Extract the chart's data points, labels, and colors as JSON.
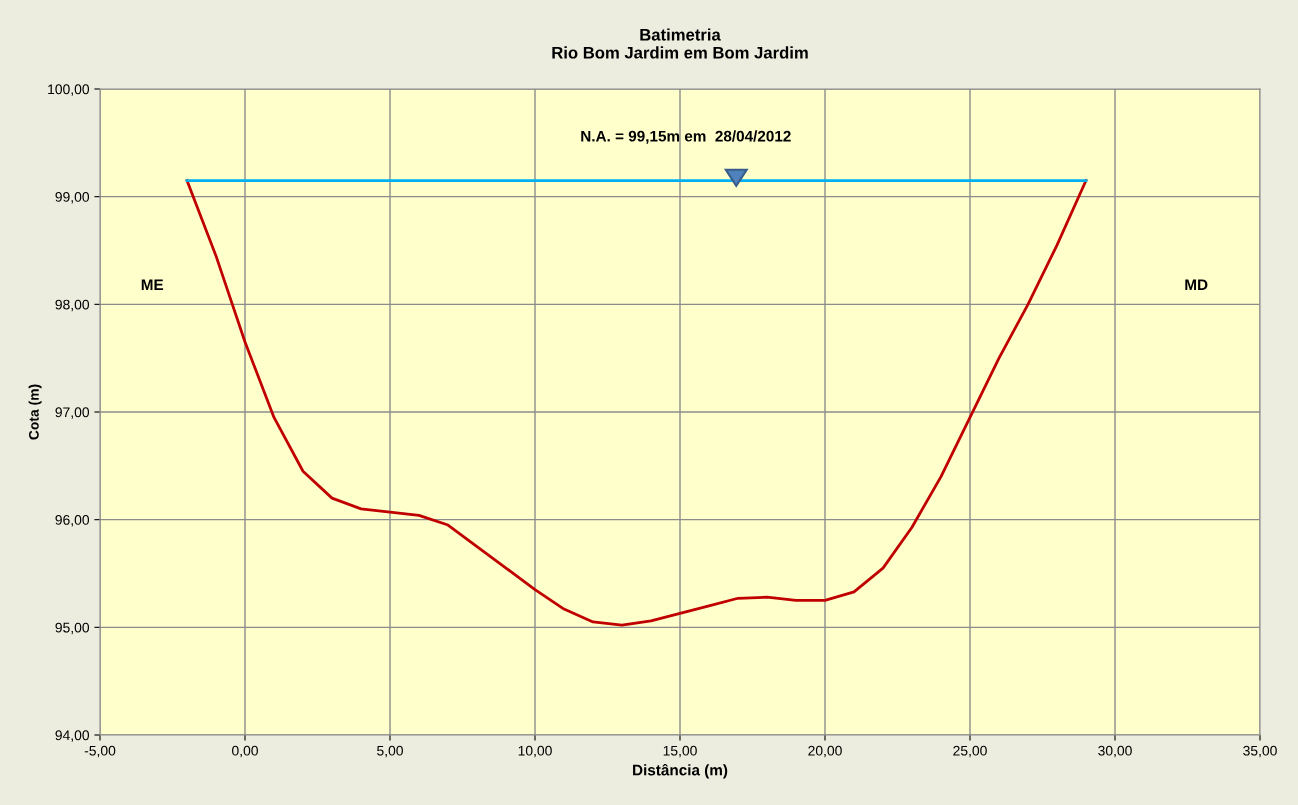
{
  "chart_data": {
    "type": "line",
    "title": "Batimetria\nRio Bom Jardim em Bom Jardim",
    "xlabel": "Distância (m)",
    "ylabel": "Cota (m)",
    "series": [
      {
        "color": "#c00000",
        "x": [
          -2,
          -1,
          0,
          1,
          2,
          3,
          4,
          5,
          6,
          7,
          8,
          9,
          10,
          11,
          12,
          13,
          14,
          15,
          16,
          17,
          18,
          19,
          20,
          21,
          22,
          23,
          24,
          25,
          26,
          27,
          28,
          29
        ],
        "values": [
          99.15,
          98.45,
          97.65,
          96.95,
          96.45,
          96.2,
          96.1,
          96.07,
          96.04,
          95.95,
          95.75,
          95.55,
          95.35,
          95.17,
          95.05,
          95.02,
          95.06,
          95.13,
          95.2,
          95.27,
          95.28,
          95.25,
          95.25,
          95.33,
          95.55,
          95.93,
          96.4,
          96.95,
          97.5,
          98.0,
          98.55,
          99.15
        ]
      },
      {
        "color": "#00b0f0",
        "x": [
          -2,
          29
        ],
        "values": [
          99.15,
          99.15
        ]
      }
    ],
    "annotations": [
      "N.A. = 99,15m em  28/04/2012",
      "ME",
      "MD"
    ],
    "xlim": [
      -5,
      35
    ],
    "ylim": [
      94,
      100
    ],
    "xticks": [
      {
        "value": -5,
        "label": "-5,00"
      },
      {
        "value": 0,
        "label": "0,00"
      },
      {
        "value": 5,
        "label": "5,00"
      },
      {
        "value": 10,
        "label": "10,00"
      },
      {
        "value": 15,
        "label": "15,00"
      },
      {
        "value": 20,
        "label": "20,00"
      },
      {
        "value": 25,
        "label": "25,00"
      },
      {
        "value": 30,
        "label": "30,00"
      },
      {
        "value": 35,
        "label": "35,00"
      }
    ],
    "yticks": [
      {
        "value": 94,
        "label": "94,00"
      },
      {
        "value": 95,
        "label": "95,00"
      },
      {
        "value": 96,
        "label": "96,00"
      },
      {
        "value": 97,
        "label": "97,00"
      },
      {
        "value": 98,
        "label": "98,00"
      },
      {
        "value": 99,
        "label": "99,00"
      },
      {
        "value": 100,
        "label": "100,00"
      }
    ],
    "grid": true,
    "legend": false,
    "marker": "none",
    "line_style": "solid"
  }
}
